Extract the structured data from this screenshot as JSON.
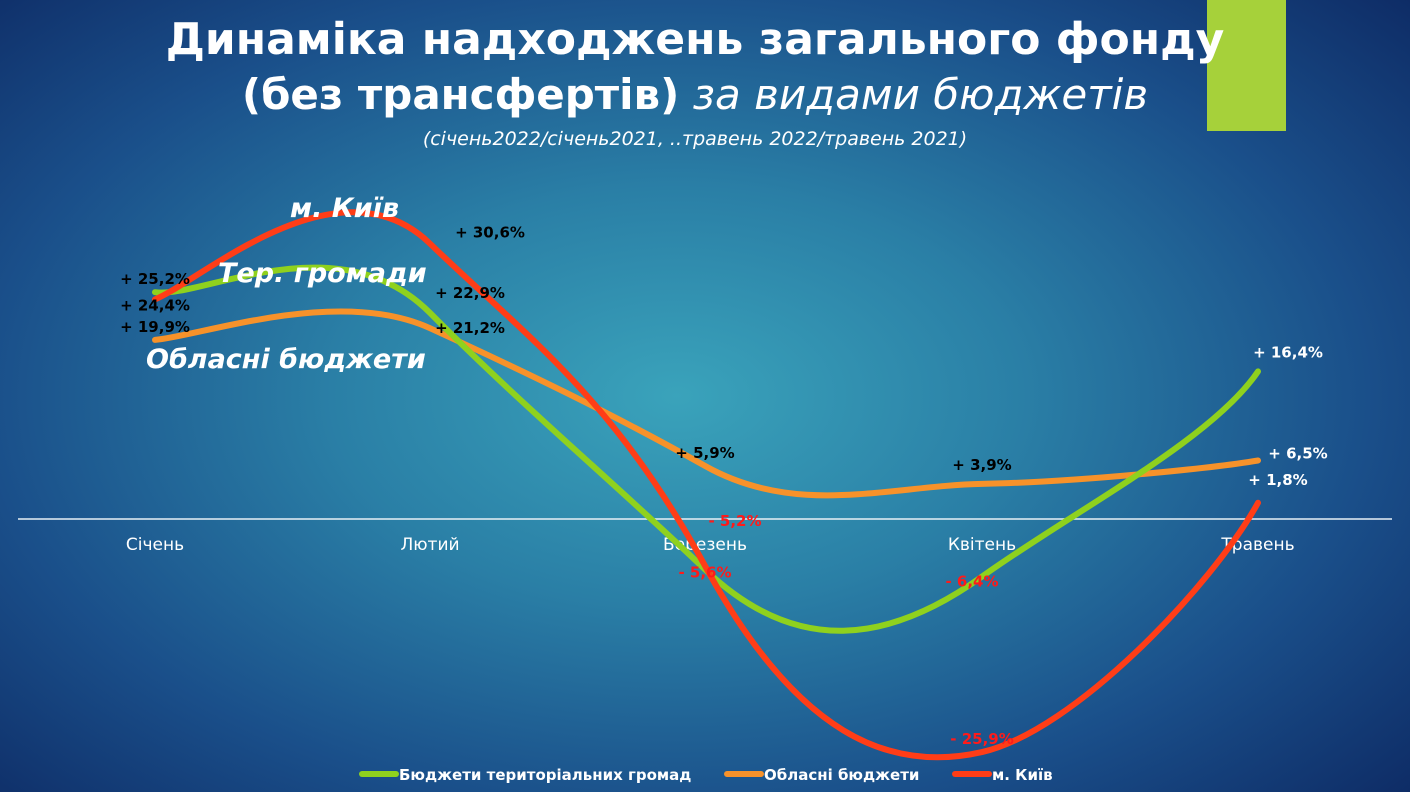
{
  "title": {
    "line1": "Динаміка надходжень загального фонду",
    "line2_bold": "(без трансфертів)",
    "line2_italic": " за видами бюджетів",
    "subtitle": "(січень2022/січень2021, ..травень 2022/травень 2021)"
  },
  "accent_color": "#a6d13a",
  "chart_data": {
    "type": "line",
    "smooth": true,
    "categories": [
      "Січень",
      "Лютий",
      "Березень",
      "Квітень",
      "Травень"
    ],
    "series": [
      {
        "name": "Бюджети територіальних громад",
        "tag": "Тер. громади",
        "color": "#8fd11e",
        "values": [
          25.2,
          22.9,
          -5.6,
          -6.4,
          16.4
        ],
        "labels": [
          "+ 25,2%",
          "+ 22,9%",
          "- 5,6%",
          "- 6,4%",
          "+ 16,4%"
        ]
      },
      {
        "name": "Обласні бюджети",
        "tag": "Обласні бюджети",
        "color": "#f7922a",
        "values": [
          19.9,
          21.2,
          5.9,
          3.9,
          6.5
        ],
        "labels": [
          "+ 19,9%",
          "+ 21,2%",
          "+ 5,9%",
          "+ 3,9%",
          "+ 6,5%"
        ]
      },
      {
        "name": "м. Київ",
        "tag": "м. Київ",
        "color": "#ff3d17",
        "values": [
          24.4,
          30.6,
          -5.2,
          -25.9,
          1.8
        ],
        "labels": [
          "+ 24,4%",
          "+ 30,6%",
          "- 5,2%",
          "- 25,9%",
          "+ 1,8%"
        ]
      }
    ],
    "negative_label_color": "#ff1a1a",
    "positive_label_color": "#000000",
    "zero_line": true,
    "grid": false,
    "legend": "bottom"
  }
}
